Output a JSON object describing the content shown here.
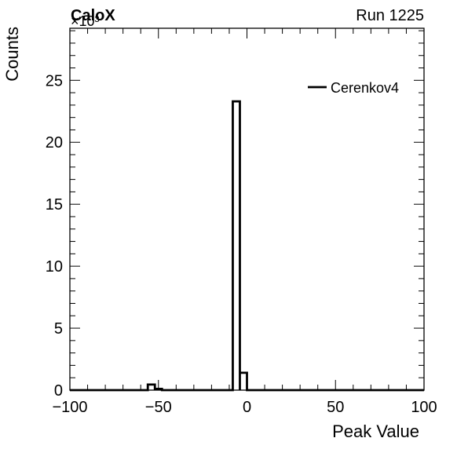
{
  "header": {
    "left_label": "CaloX",
    "right_label": "Run 1225"
  },
  "chart_data": {
    "type": "histogram",
    "xlabel": "Peak Value",
    "ylabel": "Counts",
    "y_multiplier": "×10³",
    "xlim": [
      -100,
      100
    ],
    "ylim": [
      0,
      29.2
    ],
    "x_ticks": [
      -100,
      -50,
      0,
      50,
      100
    ],
    "x_tick_labels": [
      "−100",
      "−50",
      "0",
      "50",
      "100"
    ],
    "y_ticks": [
      0,
      5,
      10,
      15,
      20,
      25
    ],
    "y_tick_labels": [
      "0",
      "5",
      "10",
      "15",
      "20",
      "25"
    ],
    "grid": false,
    "legend_position": "top-right",
    "series": [
      {
        "name": "Cerenkov4",
        "color": "#000000",
        "bin_width": 4,
        "bins": [
          {
            "x0": -56,
            "x1": -52,
            "value": 0.45
          },
          {
            "x0": -52,
            "x1": -48,
            "value": 0.1
          },
          {
            "x0": -8,
            "x1": -4,
            "value": 23.3
          },
          {
            "x0": -4,
            "x1": 0,
            "value": 1.4
          }
        ]
      }
    ]
  }
}
